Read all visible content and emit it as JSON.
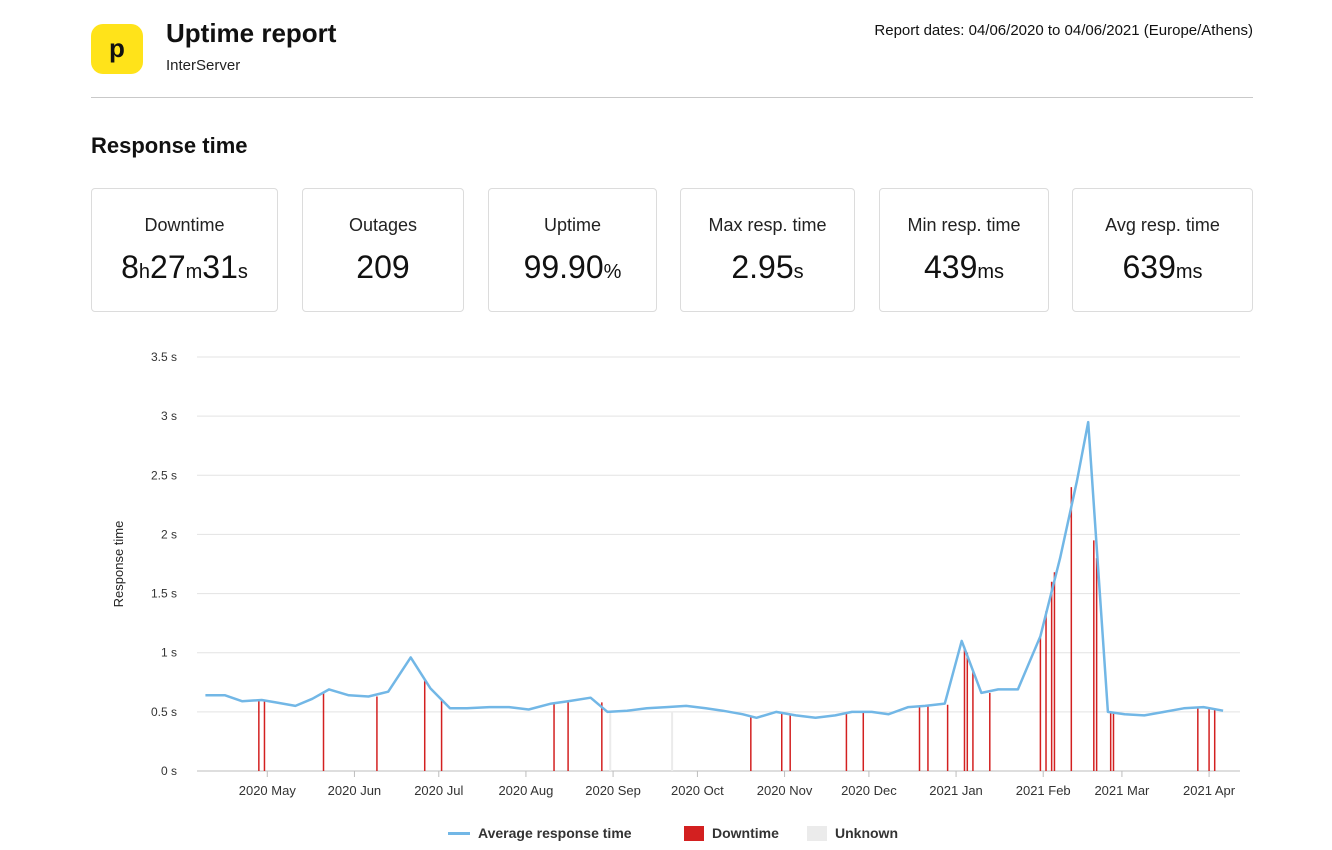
{
  "header": {
    "logo_letter": "p",
    "title": "Uptime report",
    "subtitle": "InterServer",
    "report_dates": "Report dates: 04/06/2020 to 04/06/2021 (Europe/Athens)"
  },
  "section_title": "Response time",
  "stats": [
    {
      "label": "Downtime",
      "parts": [
        "8",
        "h",
        "27",
        "m",
        "31",
        "s"
      ]
    },
    {
      "label": "Outages",
      "parts": [
        "209"
      ]
    },
    {
      "label": "Uptime",
      "parts": [
        "99.90",
        "%"
      ]
    },
    {
      "label": "Max resp. time",
      "parts": [
        "2.95",
        "s"
      ]
    },
    {
      "label": "Min resp. time",
      "parts": [
        "439",
        "ms"
      ]
    },
    {
      "label": "Avg resp. time",
      "parts": [
        "639",
        "ms"
      ]
    }
  ],
  "colors": {
    "line": "#72b7e6",
    "downtime": "#d32020",
    "unknown": "#ebebeb",
    "grid": "#e3e3e3"
  },
  "chart_data": {
    "type": "line",
    "ylabel": "Response time",
    "ylim": [
      0,
      3.5
    ],
    "yticks": [
      "0 s",
      "0.5 s",
      "1 s",
      "1.5 s",
      "2 s",
      "2.5 s",
      "3 s",
      "3.5 s"
    ],
    "x_domain": [
      "2020-04-06",
      "2021-04-12"
    ],
    "xticks": [
      {
        "date": "2020-05-01",
        "label": "2020 May"
      },
      {
        "date": "2020-06-01",
        "label": "2020 Jun"
      },
      {
        "date": "2020-07-01",
        "label": "2020 Jul"
      },
      {
        "date": "2020-08-01",
        "label": "2020 Aug"
      },
      {
        "date": "2020-09-01",
        "label": "2020 Sep"
      },
      {
        "date": "2020-10-01",
        "label": "2020 Oct"
      },
      {
        "date": "2020-11-01",
        "label": "2020 Nov"
      },
      {
        "date": "2020-12-01",
        "label": "2020 Dec"
      },
      {
        "date": "2021-01-01",
        "label": "2021 Jan"
      },
      {
        "date": "2021-02-01",
        "label": "2021 Feb"
      },
      {
        "date": "2021-03-01",
        "label": "2021 Mar"
      },
      {
        "date": "2021-04-01",
        "label": "2021 Apr"
      }
    ],
    "series": [
      {
        "name": "Average response time",
        "points": [
          [
            "2020-04-09",
            0.64
          ],
          [
            "2020-04-16",
            0.64
          ],
          [
            "2020-04-22",
            0.59
          ],
          [
            "2020-04-29",
            0.6
          ],
          [
            "2020-05-04",
            0.58
          ],
          [
            "2020-05-11",
            0.55
          ],
          [
            "2020-05-17",
            0.61
          ],
          [
            "2020-05-23",
            0.69
          ],
          [
            "2020-05-30",
            0.64
          ],
          [
            "2020-06-06",
            0.63
          ],
          [
            "2020-06-13",
            0.67
          ],
          [
            "2020-06-21",
            0.96
          ],
          [
            "2020-06-28",
            0.7
          ],
          [
            "2020-07-05",
            0.53
          ],
          [
            "2020-07-11",
            0.53
          ],
          [
            "2020-07-19",
            0.54
          ],
          [
            "2020-07-26",
            0.54
          ],
          [
            "2020-08-02",
            0.52
          ],
          [
            "2020-08-10",
            0.57
          ],
          [
            "2020-08-16",
            0.59
          ],
          [
            "2020-08-24",
            0.62
          ],
          [
            "2020-08-30",
            0.5
          ],
          [
            "2020-09-06",
            0.51
          ],
          [
            "2020-09-13",
            0.53
          ],
          [
            "2020-09-20",
            0.54
          ],
          [
            "2020-09-27",
            0.55
          ],
          [
            "2020-10-04",
            0.53
          ],
          [
            "2020-10-10",
            0.51
          ],
          [
            "2020-10-17",
            0.48
          ],
          [
            "2020-10-22",
            0.45
          ],
          [
            "2020-10-29",
            0.5
          ],
          [
            "2020-11-05",
            0.47
          ],
          [
            "2020-11-12",
            0.45
          ],
          [
            "2020-11-19",
            0.47
          ],
          [
            "2020-11-25",
            0.5
          ],
          [
            "2020-12-02",
            0.5
          ],
          [
            "2020-12-08",
            0.48
          ],
          [
            "2020-12-15",
            0.54
          ],
          [
            "2020-12-21",
            0.55
          ],
          [
            "2020-12-28",
            0.57
          ],
          [
            "2021-01-03",
            1.1
          ],
          [
            "2021-01-10",
            0.66
          ],
          [
            "2021-01-16",
            0.69
          ],
          [
            "2021-01-23",
            0.69
          ],
          [
            "2021-01-31",
            1.14
          ],
          [
            "2021-02-07",
            1.8
          ],
          [
            "2021-02-13",
            2.45
          ],
          [
            "2021-02-17",
            2.95
          ],
          [
            "2021-02-24",
            0.5
          ],
          [
            "2021-03-02",
            0.48
          ],
          [
            "2021-03-09",
            0.47
          ],
          [
            "2021-03-16",
            0.5
          ],
          [
            "2021-03-23",
            0.53
          ],
          [
            "2021-03-30",
            0.54
          ],
          [
            "2021-04-06",
            0.51
          ]
        ]
      }
    ],
    "downtime_marks": [
      [
        "2020-04-28",
        0.6
      ],
      [
        "2020-04-30",
        0.6
      ],
      [
        "2020-05-21",
        0.67
      ],
      [
        "2020-06-09",
        0.63
      ],
      [
        "2020-06-26",
        0.78
      ],
      [
        "2020-07-02",
        0.6
      ],
      [
        "2020-08-11",
        0.57
      ],
      [
        "2020-08-16",
        0.58
      ],
      [
        "2020-08-28",
        0.58
      ],
      [
        "2020-10-20",
        0.46
      ],
      [
        "2020-10-31",
        0.49
      ],
      [
        "2020-11-03",
        0.48
      ],
      [
        "2020-11-23",
        0.49
      ],
      [
        "2020-11-29",
        0.5
      ],
      [
        "2020-12-19",
        0.55
      ],
      [
        "2020-12-22",
        0.55
      ],
      [
        "2020-12-29",
        0.56
      ],
      [
        "2021-01-04",
        1.05
      ],
      [
        "2021-01-05",
        1.0
      ],
      [
        "2021-01-07",
        0.85
      ],
      [
        "2021-01-13",
        0.66
      ],
      [
        "2021-01-31",
        1.13
      ],
      [
        "2021-02-02",
        1.35
      ],
      [
        "2021-02-04",
        1.6
      ],
      [
        "2021-02-05",
        1.68
      ],
      [
        "2021-02-11",
        2.4
      ],
      [
        "2021-02-19",
        1.95
      ],
      [
        "2021-02-20",
        1.8
      ],
      [
        "2021-02-25",
        0.5
      ],
      [
        "2021-02-26",
        0.49
      ],
      [
        "2021-03-28",
        0.53
      ],
      [
        "2021-04-01",
        0.53
      ],
      [
        "2021-04-03",
        0.52
      ]
    ],
    "unknown_marks": [
      "2020-08-31",
      "2020-09-22"
    ],
    "legend": [
      "Average response time",
      "Downtime",
      "Unknown"
    ],
    "grid": true,
    "legend_position": "bottom-center"
  }
}
